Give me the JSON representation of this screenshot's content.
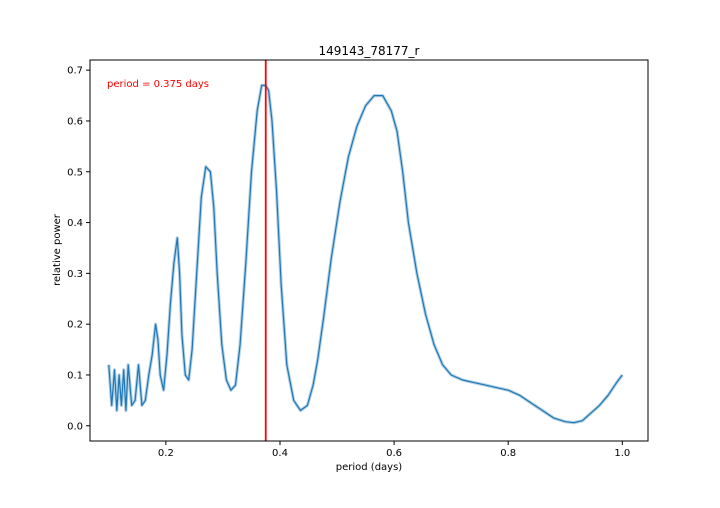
{
  "chart_data": {
    "type": "line",
    "title": "149143_78177_r",
    "xlabel": "period (days)",
    "ylabel": "relative power",
    "xlim": [
      0.067,
      1.045
    ],
    "ylim": [
      -0.03,
      0.72
    ],
    "xticks": [
      0.2,
      0.4,
      0.6,
      0.8,
      1.0
    ],
    "xtick_labels": [
      "0.2",
      "0.4",
      "0.6",
      "0.8",
      "1.0"
    ],
    "yticks": [
      0.0,
      0.1,
      0.2,
      0.3,
      0.4,
      0.5,
      0.6,
      0.7
    ],
    "ytick_labels": [
      "0.0",
      "0.1",
      "0.2",
      "0.3",
      "0.4",
      "0.5",
      "0.6",
      "0.7"
    ],
    "grid": false,
    "line_color": "#1f77b4",
    "marker_color": "#ff0000",
    "series": [
      {
        "x": [
          0.1,
          0.105,
          0.11,
          0.114,
          0.118,
          0.122,
          0.126,
          0.13,
          0.134,
          0.14,
          0.146,
          0.152,
          0.158,
          0.164,
          0.17,
          0.176,
          0.182,
          0.186,
          0.19,
          0.196,
          0.202,
          0.208,
          0.214,
          0.22,
          0.224,
          0.228,
          0.234,
          0.24,
          0.246,
          0.254,
          0.262,
          0.27,
          0.278,
          0.284,
          0.29,
          0.298,
          0.306,
          0.314,
          0.322,
          0.33,
          0.34,
          0.35,
          0.36,
          0.368,
          0.375,
          0.38,
          0.386,
          0.394,
          0.402,
          0.412,
          0.424,
          0.436,
          0.448,
          0.458,
          0.466,
          0.476,
          0.49,
          0.505,
          0.52,
          0.535,
          0.55,
          0.565,
          0.58,
          0.595,
          0.605,
          0.615,
          0.625,
          0.64,
          0.655,
          0.67,
          0.685,
          0.7,
          0.72,
          0.74,
          0.76,
          0.78,
          0.8,
          0.82,
          0.84,
          0.86,
          0.88,
          0.9,
          0.915,
          0.93,
          0.945,
          0.96,
          0.975,
          0.99,
          1.0
        ],
        "y": [
          0.12,
          0.04,
          0.11,
          0.03,
          0.1,
          0.04,
          0.11,
          0.03,
          0.12,
          0.04,
          0.05,
          0.12,
          0.04,
          0.05,
          0.1,
          0.14,
          0.2,
          0.17,
          0.1,
          0.07,
          0.14,
          0.24,
          0.32,
          0.37,
          0.3,
          0.18,
          0.1,
          0.09,
          0.15,
          0.3,
          0.45,
          0.51,
          0.5,
          0.43,
          0.3,
          0.16,
          0.09,
          0.07,
          0.08,
          0.16,
          0.32,
          0.5,
          0.62,
          0.67,
          0.67,
          0.66,
          0.6,
          0.46,
          0.28,
          0.12,
          0.05,
          0.03,
          0.04,
          0.08,
          0.13,
          0.21,
          0.33,
          0.44,
          0.53,
          0.59,
          0.63,
          0.65,
          0.65,
          0.62,
          0.58,
          0.5,
          0.4,
          0.3,
          0.22,
          0.16,
          0.12,
          0.1,
          0.09,
          0.085,
          0.08,
          0.075,
          0.07,
          0.06,
          0.045,
          0.03,
          0.015,
          0.008,
          0.006,
          0.01,
          0.025,
          0.04,
          0.06,
          0.085,
          0.1
        ]
      }
    ],
    "vline": {
      "x": 0.375
    },
    "annotation": "period = 0.375 days"
  }
}
